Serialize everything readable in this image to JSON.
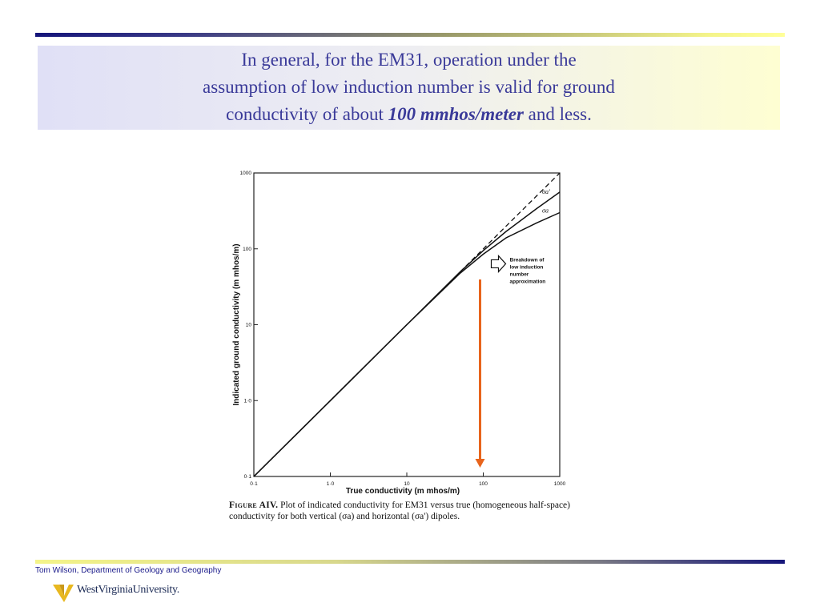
{
  "slide": {
    "title_lines": [
      "In general, for the EM31, operation under the",
      "assumption of low induction number is valid for ground",
      "conductivity of about "
    ],
    "title_emphasis": "100 mmhos/meter",
    "title_tail": " and less.",
    "footer": "Tom Wilson, Department of Geology and Geography",
    "logo_text": "WestVirginiaUniversity.",
    "colors": {
      "title_text": "#3a3a99",
      "arrow": "#e8641c",
      "footer_text": "#1a1a8a"
    }
  },
  "figure": {
    "caption_label": "Figure AIV.",
    "caption_text": "Plot of indicated conductivity for EM31 versus true (homogeneous half-space) conductivity for both vertical (σa) and horizontal (σa') dipoles.",
    "annotation_lines": [
      "Breakdown of",
      "low induction",
      "number",
      "approximation"
    ],
    "arrow_label": "orange downward arrow"
  },
  "chart_data": {
    "type": "line",
    "title": "",
    "xlabel": "True conductivity (m mhos/m)",
    "ylabel": "Indicated ground conductivity (m mhos/m)",
    "xscale": "log",
    "yscale": "log",
    "xlim": [
      0.1,
      1000
    ],
    "ylim": [
      0.1,
      1000
    ],
    "xticks": [
      "0·1",
      "1·0",
      "10",
      "100",
      "1000"
    ],
    "yticks": [
      "0·1",
      "1·0",
      "10",
      "100",
      "1000"
    ],
    "xtick_values": [
      0.1,
      1,
      10,
      100,
      1000
    ],
    "ytick_values": [
      0.1,
      1,
      10,
      100,
      1000
    ],
    "series": [
      {
        "name": "",
        "style": "dashed",
        "x": [
          50,
          100,
          200,
          500,
          1000
        ],
        "y": [
          50,
          100,
          200,
          500,
          1000
        ]
      },
      {
        "name": "σa'",
        "style": "solid",
        "x": [
          0.1,
          1,
          10,
          50,
          100,
          200,
          500,
          1000
        ],
        "y": [
          0.1,
          1,
          10,
          50,
          95,
          170,
          340,
          560
        ]
      },
      {
        "name": "σa",
        "style": "solid",
        "x": [
          0.1,
          1,
          10,
          50,
          100,
          200,
          500,
          1000
        ],
        "y": [
          0.1,
          1,
          10,
          48,
          85,
          140,
          220,
          300
        ]
      }
    ],
    "marker_x": 100,
    "grid": false
  }
}
